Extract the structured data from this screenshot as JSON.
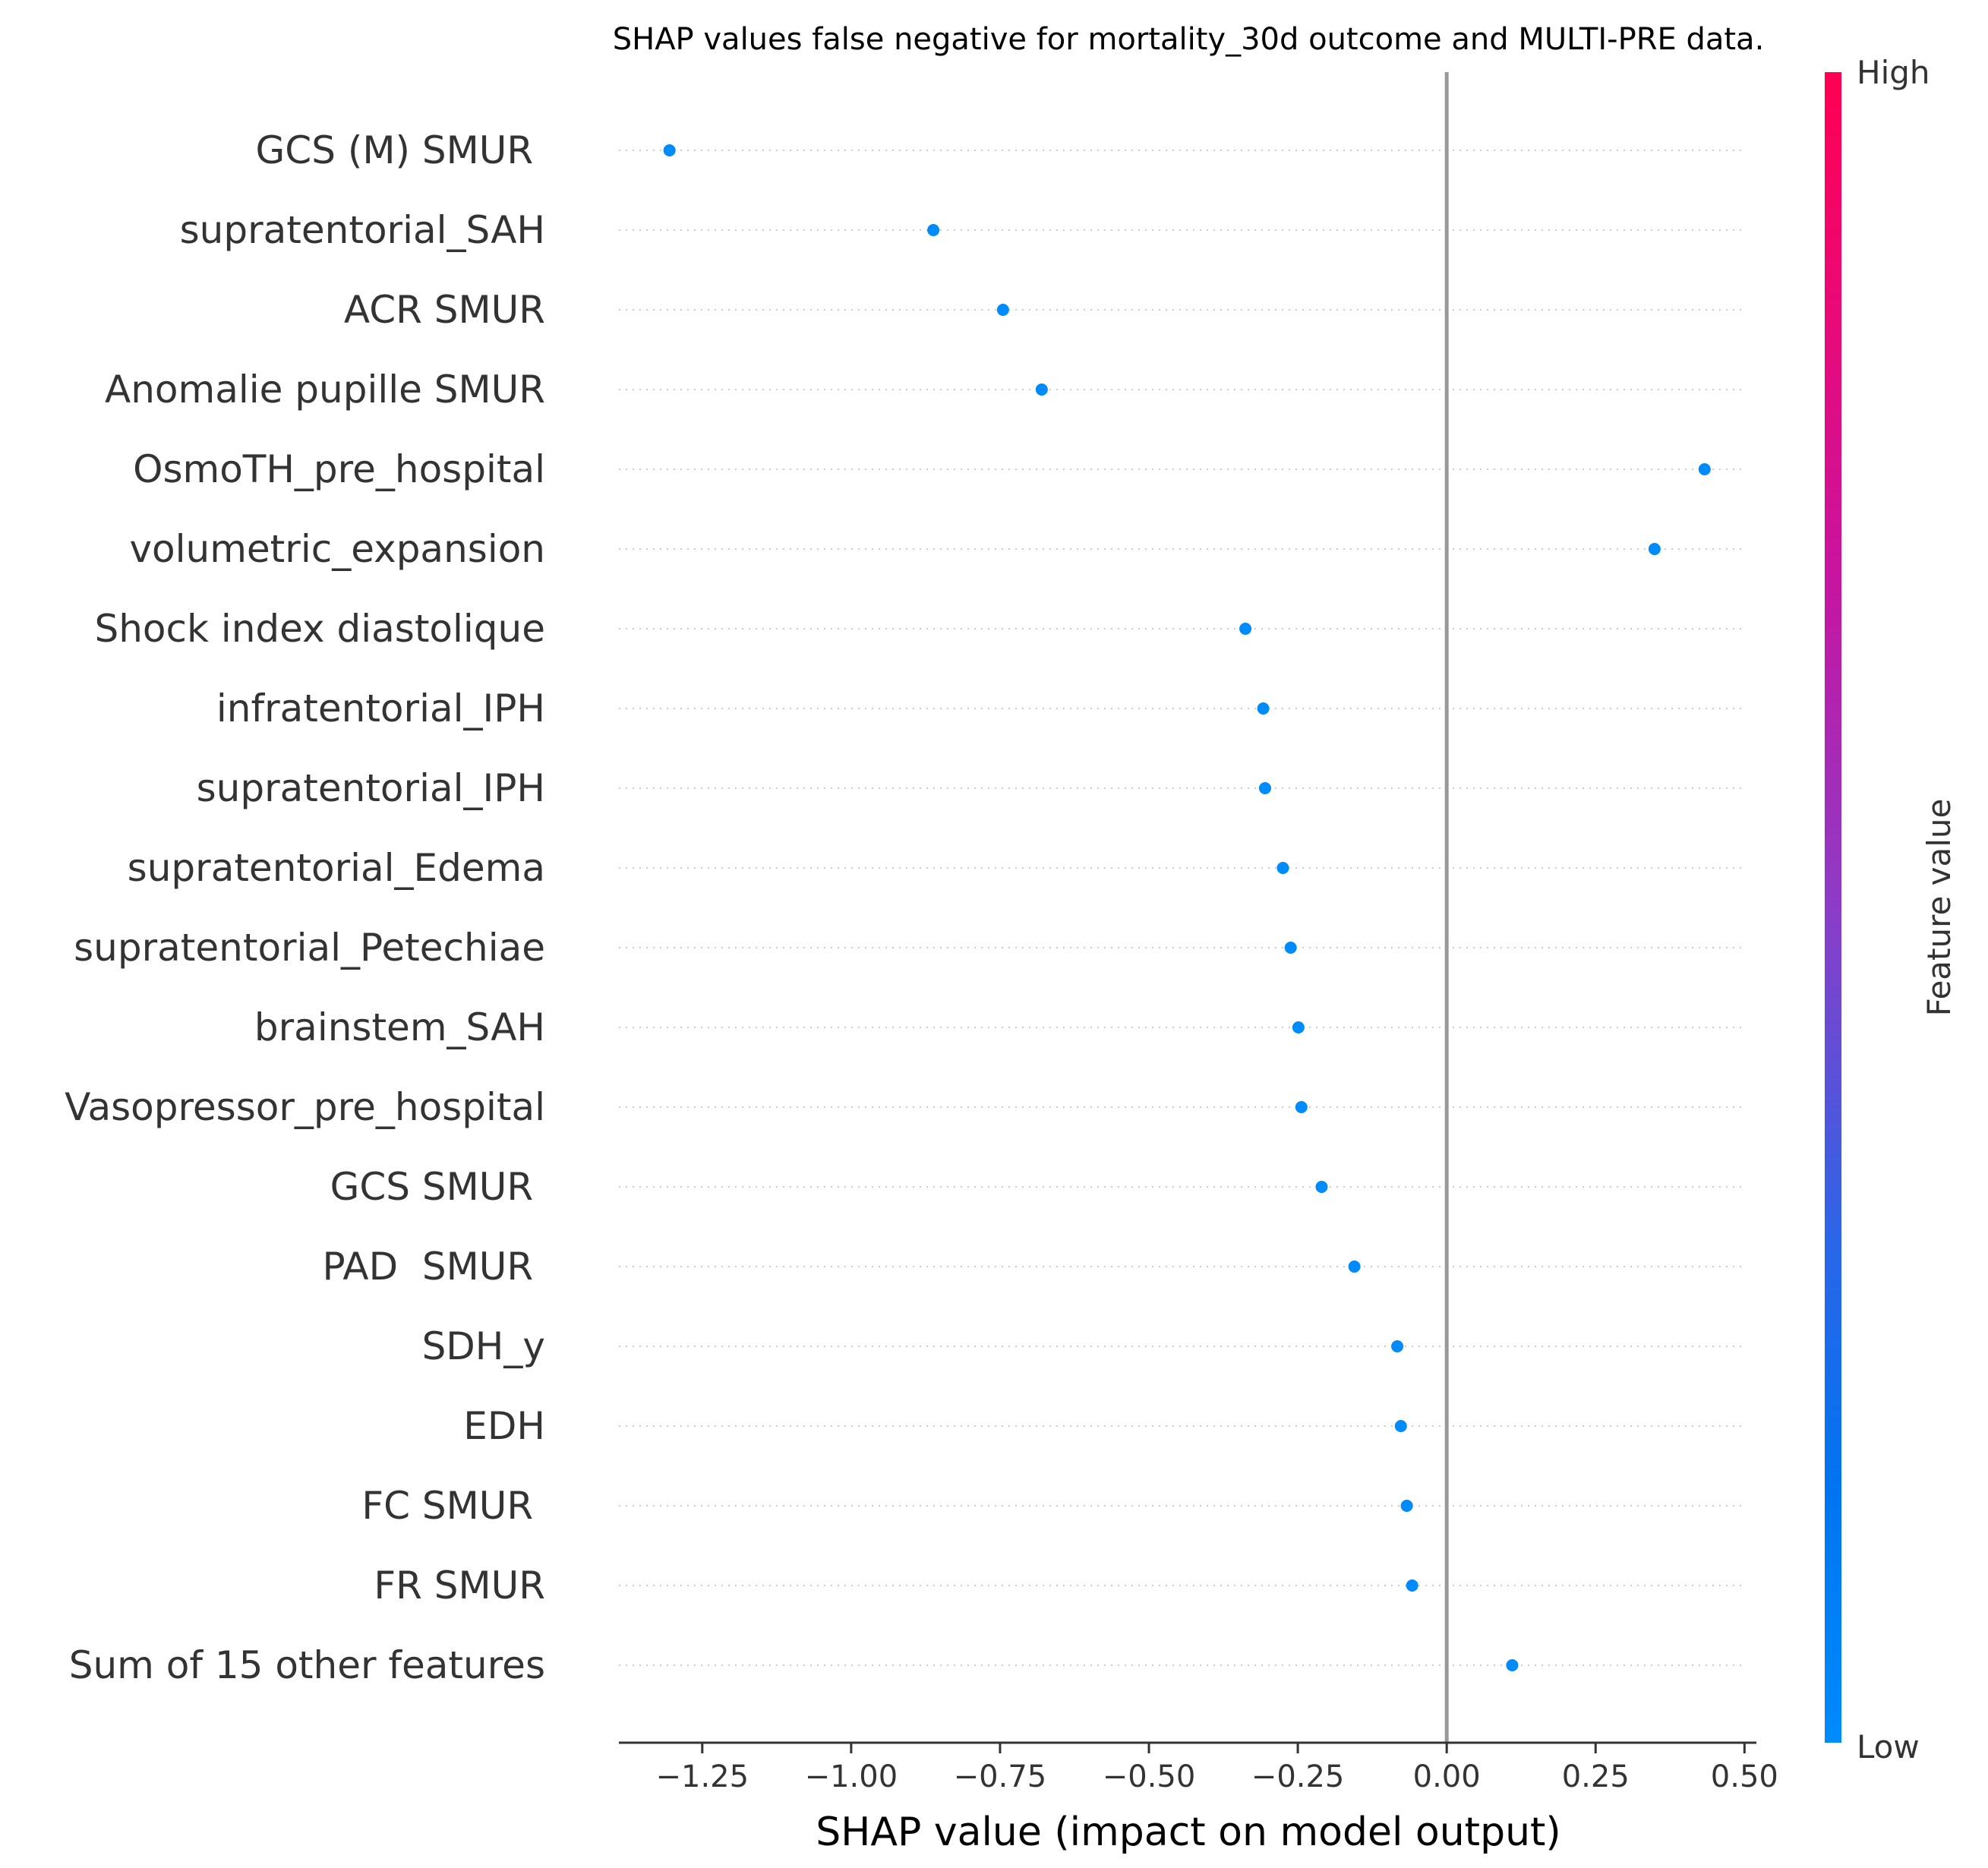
{
  "chart_data": {
    "type": "scatter",
    "title": "SHAP values false negative for mortality_30d outcome and MULTI-PRE data.",
    "xlabel": "SHAP value (impact on model output)",
    "ylabel": "",
    "xlim": [
      -1.39,
      0.52
    ],
    "xticks": [
      -1.25,
      -1.0,
      -0.75,
      -0.5,
      -0.25,
      0.0,
      0.25,
      0.5
    ],
    "xtick_labels": [
      "−1.25",
      "−1.00",
      "−0.75",
      "−0.50",
      "−0.25",
      "0.00",
      "0.25",
      "0.50"
    ],
    "grid": "horizontal dotted",
    "zero_line": true,
    "point_color": "#008bfb",
    "colorbar": {
      "title": "Feature value",
      "high_label": "High",
      "low_label": "Low",
      "high_color": "#ff0052",
      "low_color": "#008bfb"
    },
    "features": [
      {
        "name": "GCS (M) SMUR ",
        "value": -1.305
      },
      {
        "name": "supratentorial_SAH",
        "value": -0.862
      },
      {
        "name": "ACR SMUR",
        "value": -0.745
      },
      {
        "name": "Anomalie pupille SMUR",
        "value": -0.68
      },
      {
        "name": "OsmoTH_pre_hospital",
        "value": 0.433
      },
      {
        "name": "volumetric_expansion",
        "value": 0.349
      },
      {
        "name": "Shock index diastolique",
        "value": -0.338
      },
      {
        "name": "infratentorial_IPH",
        "value": -0.308
      },
      {
        "name": "supratentorial_IPH",
        "value": -0.305
      },
      {
        "name": "supratentorial_Edema",
        "value": -0.275
      },
      {
        "name": "supratentorial_Petechiae",
        "value": -0.262
      },
      {
        "name": "brainstem_SAH",
        "value": -0.249
      },
      {
        "name": "Vasopressor_pre_hospital",
        "value": -0.244
      },
      {
        "name": "GCS SMUR ",
        "value": -0.21
      },
      {
        "name": "PAD  SMUR ",
        "value": -0.155
      },
      {
        "name": "SDH_y",
        "value": -0.083
      },
      {
        "name": "EDH",
        "value": -0.077
      },
      {
        "name": "FC SMUR ",
        "value": -0.067
      },
      {
        "name": "FR SMUR",
        "value": -0.058
      },
      {
        "name": "Sum of 15 other features",
        "value": 0.11
      }
    ]
  }
}
